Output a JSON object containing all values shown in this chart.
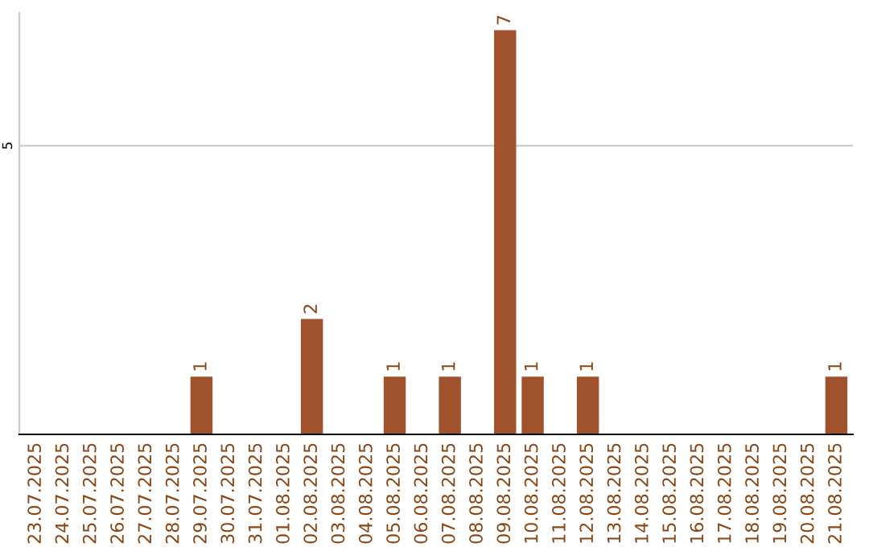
{
  "chart_data": {
    "type": "bar",
    "categories": [
      "23.07.2025",
      "24.07.2025",
      "25.07.2025",
      "26.07.2025",
      "27.07.2025",
      "28.07.2025",
      "29.07.2025",
      "30.07.2025",
      "31.07.2025",
      "01.08.2025",
      "02.08.2025",
      "03.08.2025",
      "04.08.2025",
      "05.08.2025",
      "06.08.2025",
      "07.08.2025",
      "08.08.2025",
      "09.08.2025",
      "10.08.2025",
      "11.08.2025",
      "12.08.2025",
      "13.08.2025",
      "14.08.2025",
      "15.08.2025",
      "16.08.2025",
      "17.08.2025",
      "18.08.2025",
      "19.08.2025",
      "20.08.2025",
      "21.08.2025"
    ],
    "values": [
      0,
      0,
      0,
      0,
      0,
      0,
      1,
      0,
      0,
      0,
      2,
      0,
      0,
      1,
      0,
      1,
      0,
      7,
      1,
      0,
      1,
      0,
      0,
      0,
      0,
      0,
      0,
      0,
      0,
      1
    ],
    "color": "#a0522d",
    "value_labels": [
      null,
      null,
      null,
      null,
      null,
      null,
      "1",
      null,
      null,
      null,
      "2",
      null,
      null,
      "1",
      null,
      "1",
      null,
      "7",
      "1",
      null,
      "1",
      null,
      null,
      null,
      null,
      null,
      null,
      null,
      null,
      "1"
    ],
    "ylim": [
      0,
      7.3
    ],
    "yticks": [
      5
    ],
    "grid": "y"
  }
}
